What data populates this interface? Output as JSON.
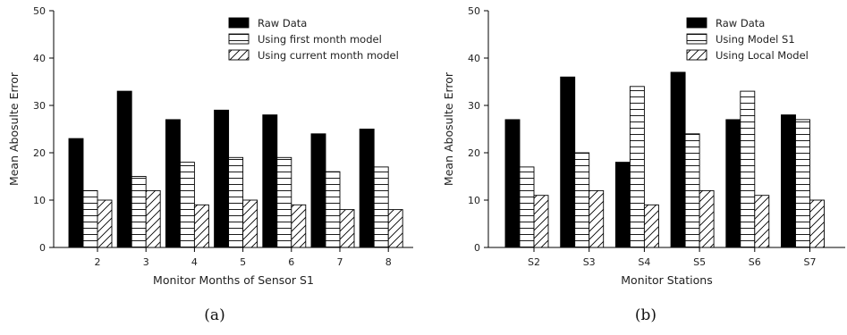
{
  "chart_data": [
    {
      "type": "bar",
      "caption": "(a)",
      "xlabel": "Monitor Months of Sensor S1",
      "ylabel": "Mean Abosulte Error",
      "ylim": [
        0,
        50
      ],
      "yticks": [
        0,
        10,
        20,
        30,
        40,
        50
      ],
      "legend_position": "top-right",
      "categories": [
        "2",
        "3",
        "4",
        "5",
        "6",
        "7",
        "8"
      ],
      "series": [
        {
          "name": "Raw Data",
          "fill": "solid-black",
          "values": [
            23,
            33,
            27,
            29,
            28,
            24,
            25
          ]
        },
        {
          "name": "Using first month model",
          "fill": "horizontal-lines",
          "values": [
            12,
            15,
            18,
            19,
            19,
            16,
            17
          ]
        },
        {
          "name": "Using current month model",
          "fill": "diagonal-lines",
          "values": [
            10,
            12,
            9,
            10,
            9,
            8,
            8
          ]
        }
      ]
    },
    {
      "type": "bar",
      "caption": "(b)",
      "xlabel": "Monitor Stations",
      "ylabel": "Mean Abosulte Error",
      "ylim": [
        0,
        50
      ],
      "yticks": [
        0,
        10,
        20,
        30,
        40,
        50
      ],
      "legend_position": "top-right",
      "categories": [
        "S2",
        "S3",
        "S4",
        "S5",
        "S6",
        "S7"
      ],
      "series": [
        {
          "name": "Raw Data",
          "fill": "solid-black",
          "values": [
            27,
            36,
            18,
            37,
            27,
            28
          ]
        },
        {
          "name": "Using Model S1",
          "fill": "horizontal-lines",
          "values": [
            17,
            20,
            34,
            24,
            33,
            27
          ]
        },
        {
          "name": "Using Local Model",
          "fill": "diagonal-lines",
          "values": [
            11,
            12,
            9,
            12,
            11,
            10
          ]
        }
      ]
    }
  ]
}
